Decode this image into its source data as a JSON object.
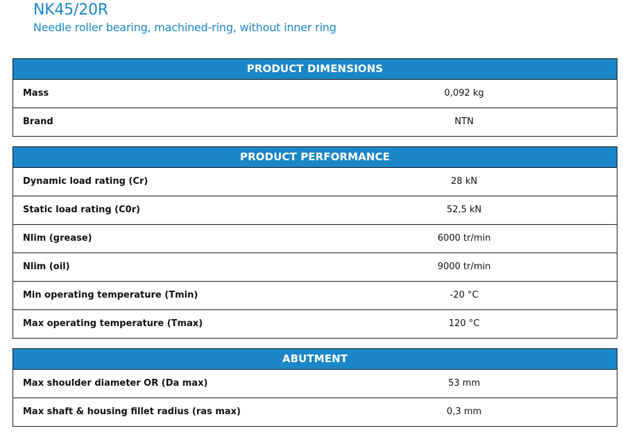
{
  "product": {
    "title": "NK45/20R",
    "subtitle": "Needle roller bearing, machined-ring, without inner ring"
  },
  "sections": [
    {
      "heading": "PRODUCT DIMENSIONS",
      "rows": [
        {
          "label": "Mass",
          "value": "0,092 kg"
        },
        {
          "label": "Brand",
          "value": "NTN"
        }
      ]
    },
    {
      "heading": "PRODUCT PERFORMANCE",
      "rows": [
        {
          "label": "Dynamic load rating (Cr)",
          "value": "28 kN"
        },
        {
          "label": "Static load rating (C0r)",
          "value": "52,5 kN"
        },
        {
          "label": "Nlim (grease)",
          "value": "6000 tr/min"
        },
        {
          "label": "Nlim (oil)",
          "value": "9000 tr/min"
        },
        {
          "label": "Min operating temperature (Tmin)",
          "value": "-20 °C"
        },
        {
          "label": "Max operating temperature (Tmax)",
          "value": "120 °C"
        }
      ]
    },
    {
      "heading": "ABUTMENT",
      "rows": [
        {
          "label": "Max shoulder diameter OR (Da max)",
          "value": "53 mm"
        },
        {
          "label": "Max shaft & housing fillet radius (ras max)",
          "value": "0,3 mm"
        }
      ]
    }
  ],
  "colors": {
    "accent": "#1b86c8",
    "title": "#1a86c7",
    "border": "#1a1a1a"
  }
}
